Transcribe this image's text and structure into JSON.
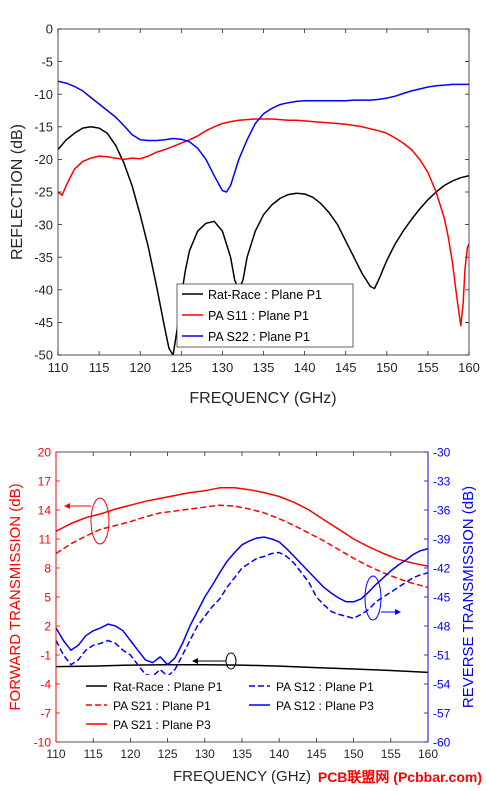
{
  "watermark": "PCB联盟网 (Pcbbar.com)",
  "colors": {
    "black": "#000000",
    "red": "#ff0000",
    "blue": "#0000ff",
    "axis": "#262626"
  },
  "chart_data": [
    {
      "type": "line",
      "xlabel": "FREQUENCY (GHz)",
      "ylabel": "REFLECTION (dB)",
      "xlim": [
        110,
        160
      ],
      "ylim": [
        -50,
        0
      ],
      "xticks": [
        110,
        115,
        120,
        125,
        130,
        135,
        140,
        145,
        150,
        155,
        160
      ],
      "yticks": [
        0,
        -5,
        -10,
        -15,
        -20,
        -25,
        -30,
        -35,
        -40,
        -45,
        -50
      ],
      "grid": false,
      "legend_position": "bottom-center",
      "series": [
        {
          "name": "Rat-Race : Plane P1",
          "color": "#000000",
          "dash": "solid",
          "x": [
            110,
            111,
            112,
            113,
            114,
            115,
            116,
            117,
            118,
            119,
            120,
            121,
            122,
            123,
            123.5,
            124,
            124.5,
            125,
            125.5,
            126,
            127,
            128,
            129,
            130,
            131,
            131.5,
            132,
            132.5,
            133,
            134,
            135,
            136,
            137,
            138,
            139,
            140,
            141,
            142,
            143,
            144,
            145,
            146,
            147,
            148,
            148.5,
            149,
            150,
            151,
            152,
            153,
            154,
            155,
            156,
            157,
            158,
            159,
            160
          ],
          "y": [
            -18.5,
            -17,
            -16,
            -15.2,
            -15,
            -15.2,
            -16,
            -17.8,
            -20.5,
            -24,
            -28.5,
            -33.5,
            -39.5,
            -46,
            -49,
            -50,
            -46,
            -41,
            -37,
            -34,
            -31,
            -29.8,
            -29.5,
            -31,
            -35,
            -38.5,
            -40,
            -38.5,
            -35,
            -31,
            -28.5,
            -27,
            -26,
            -25.4,
            -25.2,
            -25.3,
            -25.8,
            -26.8,
            -28.2,
            -30,
            -32.5,
            -35,
            -37.5,
            -39.5,
            -39.8,
            -38.5,
            -35.5,
            -33,
            -31,
            -29.2,
            -27.6,
            -26.2,
            -25,
            -24,
            -23.3,
            -22.8,
            -22.5
          ]
        },
        {
          "name": "PA S11 : Plane P1",
          "color": "#ff0000",
          "dash": "solid",
          "x": [
            110,
            110.5,
            111,
            112,
            113,
            114,
            115,
            116,
            117,
            118,
            119,
            120,
            121,
            122,
            123,
            124,
            125,
            126,
            127,
            128,
            129,
            130,
            131,
            132,
            133,
            134,
            135,
            136,
            137,
            138,
            139,
            140,
            141,
            142,
            143,
            144,
            145,
            146,
            147,
            148,
            149,
            150,
            151,
            152,
            153,
            154,
            155,
            156,
            157,
            157.5,
            158,
            158.5,
            159,
            159.3,
            159.5,
            159.8,
            160
          ],
          "y": [
            -25,
            -25.5,
            -24,
            -21.5,
            -20.3,
            -19.8,
            -19.5,
            -19.6,
            -19.8,
            -20,
            -19.8,
            -19.9,
            -19.5,
            -18.9,
            -18.5,
            -18,
            -17.5,
            -17,
            -16.4,
            -15.6,
            -15,
            -14.5,
            -14.2,
            -14,
            -13.9,
            -13.8,
            -13.8,
            -13.8,
            -13.9,
            -14,
            -14,
            -14.1,
            -14.2,
            -14.3,
            -14.4,
            -14.5,
            -14.6,
            -14.8,
            -15,
            -15.3,
            -15.6,
            -16,
            -16.7,
            -17.5,
            -18.5,
            -20,
            -22,
            -25,
            -29,
            -32,
            -36,
            -41,
            -45.5,
            -42,
            -37,
            -33.5,
            -33
          ]
        },
        {
          "name": "PA S22 : Plane P1",
          "color": "#0000ff",
          "dash": "solid",
          "x": [
            110,
            111,
            112,
            113,
            114,
            115,
            116,
            117,
            118,
            119,
            120,
            121,
            122,
            123,
            124,
            125,
            126,
            127,
            128,
            129,
            130,
            130.5,
            131,
            132,
            133,
            134,
            135,
            136,
            137,
            138,
            139,
            140,
            141,
            142,
            143,
            144,
            145,
            146,
            147,
            148,
            149,
            150,
            151,
            152,
            153,
            154,
            155,
            156,
            157,
            158,
            159,
            160
          ],
          "y": [
            -8,
            -8.3,
            -8.8,
            -9.5,
            -10.5,
            -11.5,
            -12.5,
            -13.5,
            -14.8,
            -16.2,
            -17,
            -17.1,
            -17.1,
            -17,
            -16.8,
            -16.9,
            -17.3,
            -18.3,
            -20,
            -22.5,
            -24.8,
            -25,
            -24,
            -20,
            -17,
            -14.5,
            -13,
            -12.2,
            -11.6,
            -11.3,
            -11.1,
            -11,
            -11,
            -11,
            -11,
            -11,
            -11,
            -10.9,
            -10.9,
            -10.9,
            -10.8,
            -10.6,
            -10.3,
            -9.9,
            -9.5,
            -9.2,
            -8.9,
            -8.7,
            -8.6,
            -8.5,
            -8.5,
            -8.5
          ]
        }
      ]
    },
    {
      "type": "line",
      "xlabel": "FREQUENCY (GHz)",
      "ylabel": "FORWARD TRANSMISSION (dB)",
      "y2label": "REVERSE TRANSMISSION (dB)",
      "xlim": [
        110,
        160
      ],
      "ylim": [
        -10,
        20
      ],
      "y2lim": [
        -60,
        -30
      ],
      "xticks": [
        110,
        115,
        120,
        125,
        130,
        135,
        140,
        145,
        150,
        155,
        160
      ],
      "yticks": [
        20,
        17,
        14,
        11,
        8,
        5,
        2,
        -1,
        -4,
        -7,
        -10
      ],
      "y2ticks": [
        -30,
        -33,
        -36,
        -39,
        -42,
        -45,
        -48,
        -51,
        -54,
        -57,
        -60
      ],
      "grid": false,
      "legend_position": "bottom-center",
      "series": [
        {
          "name": "Rat-Race : Plane P1",
          "axis": "left",
          "color": "#000000",
          "dash": "solid",
          "x": [
            110,
            115,
            120,
            125,
            130,
            135,
            140,
            145,
            150,
            155,
            160
          ],
          "y": [
            -2.2,
            -2.15,
            -2.05,
            -2.0,
            -2.0,
            -2.05,
            -2.15,
            -2.3,
            -2.45,
            -2.6,
            -2.8
          ]
        },
        {
          "name": "PA S21 : Plane P1",
          "axis": "left",
          "color": "#ff0000",
          "dash": "dashed",
          "x": [
            110,
            112,
            114,
            116,
            118,
            120,
            122,
            124,
            126,
            128,
            130,
            132,
            134,
            136,
            138,
            140,
            142,
            144,
            146,
            148,
            150,
            152,
            154,
            156,
            158,
            160
          ],
          "y": [
            9.5,
            10.5,
            11.3,
            12,
            12.4,
            12.8,
            13.3,
            13.7,
            13.9,
            14.1,
            14.3,
            14.5,
            14.4,
            14.1,
            13.7,
            13.1,
            12.4,
            11.6,
            10.8,
            9.9,
            9.0,
            8.2,
            7.5,
            6.9,
            6.4,
            6.0
          ]
        },
        {
          "name": "PA S21 : Plane P3",
          "axis": "left",
          "color": "#ff0000",
          "dash": "solid",
          "x": [
            110,
            112,
            114,
            116,
            118,
            120,
            122,
            124,
            126,
            128,
            130,
            132,
            134,
            136,
            138,
            140,
            142,
            144,
            146,
            148,
            150,
            152,
            154,
            156,
            158,
            160
          ],
          "y": [
            11.8,
            12.6,
            13.2,
            13.6,
            14.1,
            14.5,
            14.9,
            15.2,
            15.5,
            15.8,
            16.0,
            16.3,
            16.3,
            16.1,
            15.8,
            15.4,
            14.8,
            14.0,
            13.0,
            12.0,
            11.0,
            10.2,
            9.5,
            8.9,
            8.5,
            8.2
          ]
        },
        {
          "name": "PA S12 : Plane P1",
          "axis": "right",
          "color": "#0000ff",
          "dash": "dashed",
          "x": [
            110,
            111,
            112,
            113,
            114,
            115,
            116,
            117,
            118,
            119,
            120,
            121,
            122,
            123,
            124,
            125,
            126,
            127,
            128,
            129,
            130,
            131,
            132,
            133,
            134,
            135,
            136,
            137,
            138,
            139,
            140,
            141,
            142,
            143,
            144,
            145,
            146,
            147,
            148,
            149,
            150,
            151,
            152,
            153,
            154,
            155,
            156,
            157,
            158,
            159,
            160
          ],
          "y": [
            -49.5,
            -51,
            -52,
            -51.5,
            -50.5,
            -50,
            -49.8,
            -49.5,
            -49.8,
            -50.5,
            -51,
            -52,
            -53,
            -53.2,
            -52.5,
            -53.2,
            -52.5,
            -51,
            -49.5,
            -48,
            -47,
            -46,
            -45.2,
            -44,
            -43,
            -42,
            -41.5,
            -41,
            -40.8,
            -40.5,
            -40.4,
            -40.8,
            -41.5,
            -42.5,
            -43.5,
            -45,
            -45.8,
            -46.5,
            -46.8,
            -47,
            -47.2,
            -46.8,
            -46.3,
            -45.5,
            -45,
            -44.5,
            -44,
            -43.5,
            -43,
            -42.7,
            -42.5
          ]
        },
        {
          "name": "PA S12 : Plane P3",
          "axis": "right",
          "color": "#0000ff",
          "dash": "solid",
          "x": [
            110,
            111,
            112,
            113,
            114,
            115,
            116,
            117,
            118,
            119,
            120,
            121,
            122,
            123,
            124,
            125,
            126,
            127,
            128,
            129,
            130,
            131,
            132,
            133,
            134,
            135,
            136,
            137,
            138,
            139,
            140,
            141,
            142,
            143,
            144,
            145,
            146,
            147,
            148,
            149,
            150,
            151,
            152,
            153,
            154,
            155,
            156,
            157,
            158,
            159,
            160
          ],
          "y": [
            -48.2,
            -49.5,
            -50.5,
            -50,
            -49,
            -48.5,
            -48.2,
            -47.8,
            -48,
            -48.5,
            -49.5,
            -50.5,
            -51.5,
            -51.8,
            -51.2,
            -52,
            -51.3,
            -49.8,
            -48,
            -46.5,
            -45,
            -43.8,
            -42.5,
            -41.3,
            -40.4,
            -39.6,
            -39.2,
            -38.9,
            -38.8,
            -39,
            -39.3,
            -40,
            -40.8,
            -41.6,
            -42.4,
            -43.2,
            -44,
            -44.6,
            -45.1,
            -45.5,
            -45.5,
            -45.2,
            -44.5,
            -43.7,
            -43,
            -42.3,
            -41.7,
            -41.2,
            -40.6,
            -40.2,
            -40
          ]
        }
      ]
    }
  ]
}
